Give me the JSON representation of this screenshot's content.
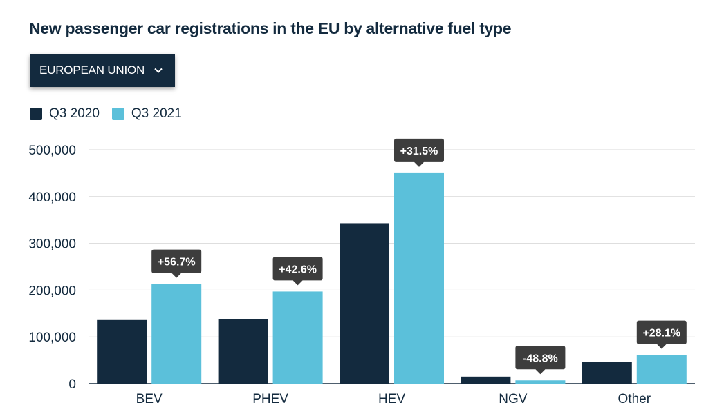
{
  "title": "New passenger car registrations in the EU by alternative fuel type",
  "dropdown": {
    "label": "EUROPEAN UNION",
    "icon": "chevron-down-icon"
  },
  "colors": {
    "q3_2020": "#132a3e",
    "q3_2021": "#5bc0da",
    "bubble": "#3d3d3d",
    "grid": "#d9d9d9"
  },
  "chart_data": {
    "type": "bar",
    "categories": [
      "BEV",
      "PHEV",
      "HEV",
      "NGV",
      "Other"
    ],
    "series": [
      {
        "name": "Q3 2020",
        "values": [
          136000,
          138000,
          343000,
          15000,
          47000
        ]
      },
      {
        "name": "Q3 2021",
        "values": [
          213000,
          197000,
          450000,
          7000,
          61000
        ]
      }
    ],
    "changes": [
      "+56.7%",
      "+42.6%",
      "+31.5%",
      "-48.8%",
      "+28.1%"
    ],
    "ylim": [
      0,
      500000
    ],
    "yticks": [
      0,
      100000,
      200000,
      300000,
      400000,
      500000
    ],
    "ytick_labels": [
      "0",
      "100,000",
      "200,000",
      "300,000",
      "400,000",
      "500,000"
    ],
    "grid": true,
    "legend_placement": "top-left",
    "title": "New passenger car registrations in the EU by alternative fuel type",
    "xlabel": "",
    "ylabel": ""
  }
}
